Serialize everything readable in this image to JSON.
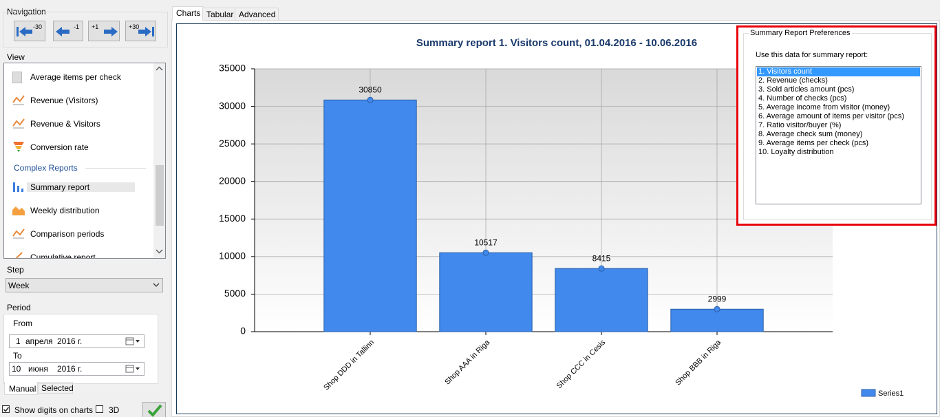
{
  "navigation": {
    "title": "Navigation",
    "buttons": [
      "-30",
      "-1",
      "+1",
      "+30"
    ]
  },
  "view": {
    "title": "View",
    "items": [
      "Average items per check",
      "Revenue (Visitors)",
      "Revenue & Visitors",
      "Conversion rate"
    ],
    "section": "Complex Reports",
    "section_items": [
      "Summary report",
      "Weekly distribution",
      "Comparison periods",
      "Cumulative report"
    ]
  },
  "step": {
    "title": "Step",
    "value": "Week"
  },
  "period": {
    "title": "Period",
    "from_label": "From",
    "from": {
      "day": "1",
      "month": "апреля",
      "year": "2016 г."
    },
    "to_label": "To",
    "to": {
      "day": "10",
      "month": "июня",
      "year": "2016 г."
    },
    "tabs": [
      "Manual",
      "Selected"
    ]
  },
  "options": {
    "show_digits": "Show digits on charts",
    "three_d": "3D"
  },
  "tabs": [
    "Charts",
    "Tabular",
    "Advanced"
  ],
  "chart_data": {
    "type": "bar",
    "title": "Summary report 1. Visitors count, 01.04.2016 - 10.06.2016",
    "categories": [
      "Shop DDD in Tallinn",
      "Shop AAA in Riga",
      "Shop CCC in Cesis",
      "Shop BBB in Riga"
    ],
    "series": [
      {
        "name": "Series1",
        "color": "#4189ec",
        "values": [
          30850,
          10517,
          8415,
          2999
        ]
      }
    ],
    "ylim": [
      0,
      35000
    ],
    "yticks": [
      0,
      5000,
      10000,
      15000,
      20000,
      25000,
      30000,
      35000
    ],
    "grid": true
  },
  "preferences": {
    "title": "Summary Report Preferences",
    "prompt": "Use this data for summary report:",
    "options": [
      "1. Visitors count",
      "2. Revenue (checks)",
      "3. Sold articles amount (pcs)",
      "4. Number of checks (pcs)",
      "5. Average income from visitor (money)",
      "6. Average amount of items per visitor (pcs)",
      "7. Ratio visitor/buyer (%)",
      "8. Average check sum (money)",
      "9. Average items per check (pcs)",
      "10. Loyalty distribution"
    ]
  }
}
